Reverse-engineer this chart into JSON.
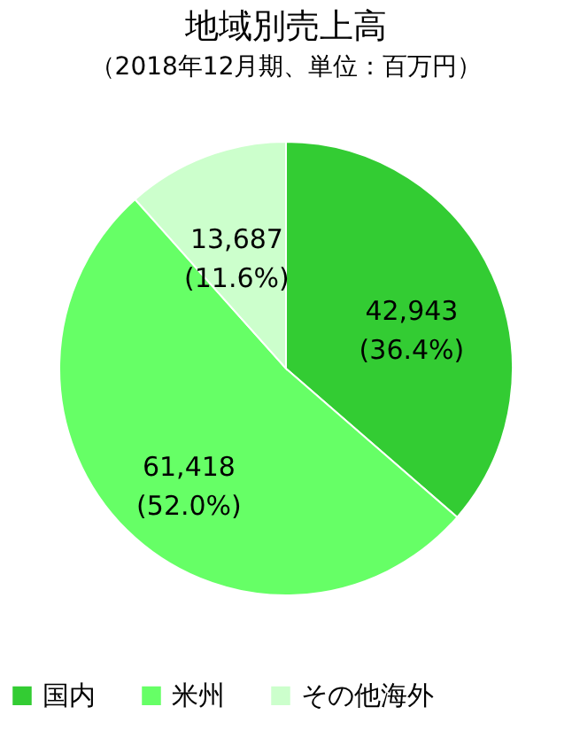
{
  "chart_data": {
    "type": "pie",
    "title": "地域別売上高",
    "subtitle": "（2018年12月期、単位：百万円）",
    "categories": [
      "国内",
      "米州",
      "その他海外"
    ],
    "values": [
      42943,
      61418,
      13687
    ],
    "colors": [
      "#33cc33",
      "#66ff66",
      "#ccffcc"
    ],
    "value_labels": [
      "42,943\n(36.4%)",
      "61,418\n(52.0%)",
      "13,687\n(11.6%)"
    ],
    "legend": "bottom"
  }
}
